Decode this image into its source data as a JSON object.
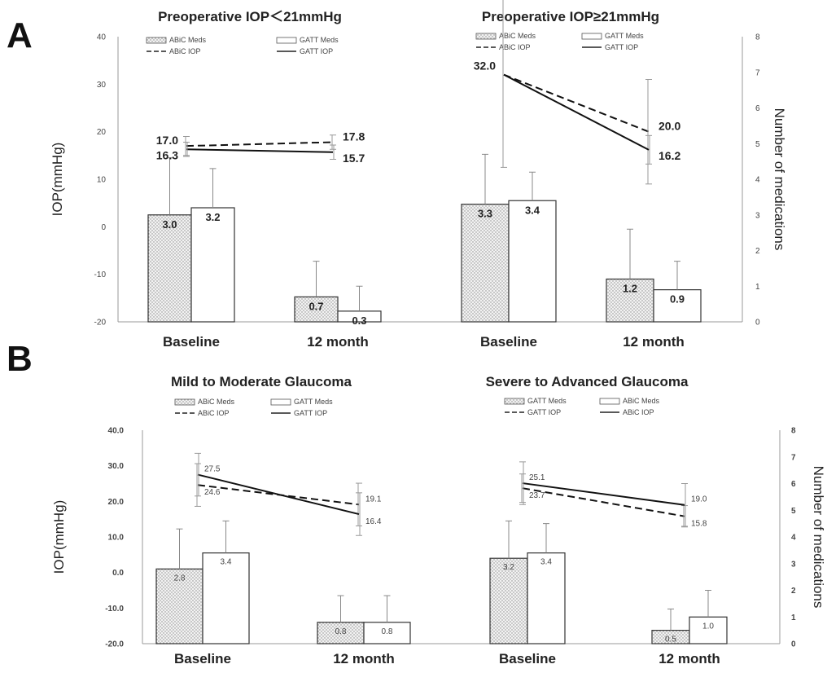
{
  "panels": {
    "A": {
      "letter": "A"
    },
    "B": {
      "letter": "B"
    }
  },
  "chart_data": [
    {
      "type": "bar",
      "panel": "A",
      "title": "Preoperative IOP＜21mmHg",
      "categories": [
        "Baseline",
        "12 month"
      ],
      "ylabel": "IOP(mmHg)",
      "y2label": "Number of medications",
      "ylim": [
        -20,
        40
      ],
      "y2lim": [
        0,
        8
      ],
      "yticks": [
        "-20",
        "-10",
        "0",
        "10",
        "20",
        "30",
        "40"
      ],
      "y2ticks": [
        "0",
        "1",
        "2",
        "3",
        "4",
        "5",
        "6",
        "7",
        "8"
      ],
      "legend": [
        "ABiC Meds",
        "GATT Meds",
        "ABiC IOP",
        "GATT IOP"
      ],
      "series": [
        {
          "name": "ABiC Meds",
          "kind": "bar",
          "values": [
            3.0,
            0.7
          ],
          "labels": [
            "3.0",
            "0.7"
          ],
          "err": [
            1.6,
            1.0
          ]
        },
        {
          "name": "GATT Meds",
          "kind": "bar",
          "values": [
            3.2,
            0.3
          ],
          "labels": [
            "3.2",
            "0.3"
          ],
          "err": [
            1.1,
            0.7
          ]
        },
        {
          "name": "ABiC IOP",
          "kind": "line",
          "style": "dashed",
          "values": [
            17.0,
            17.8
          ],
          "labels": [
            "17.0",
            "17.8"
          ],
          "err": [
            2.0,
            1.5
          ]
        },
        {
          "name": "GATT IOP",
          "kind": "line",
          "style": "solid",
          "values": [
            16.3,
            15.7
          ],
          "labels": [
            "16.3",
            "15.7"
          ],
          "err": [
            1.5,
            1.5
          ]
        }
      ]
    },
    {
      "type": "bar",
      "panel": "A",
      "title": "Preoperative IOP≥21mmHg",
      "categories": [
        "Baseline",
        "12 month"
      ],
      "ylabel": "IOP(mmHg)",
      "y2label": "Number of medications",
      "ylim": [
        -20,
        40
      ],
      "y2lim": [
        0,
        8
      ],
      "yticks": [
        "-20",
        "-10",
        "0",
        "10",
        "20",
        "30",
        "40"
      ],
      "y2ticks": [
        "0",
        "1",
        "2",
        "3",
        "4",
        "5",
        "6",
        "7",
        "8"
      ],
      "legend": [
        "ABiC Meds",
        "GATT Meds",
        "ABiC IOP",
        "GATT IOP"
      ],
      "series": [
        {
          "name": "ABiC Meds",
          "kind": "bar",
          "values": [
            3.3,
            1.2
          ],
          "labels": [
            "3.3",
            "1.2"
          ],
          "err": [
            1.4,
            1.4
          ]
        },
        {
          "name": "GATT Meds",
          "kind": "bar",
          "values": [
            3.4,
            0.9
          ],
          "labels": [
            "3.4",
            "0.9"
          ],
          "err": [
            0.8,
            0.8
          ]
        },
        {
          "name": "ABiC IOP",
          "kind": "line",
          "style": "dashed",
          "values": [
            32.0,
            20.0
          ],
          "labels": [
            "32.0",
            "20.0"
          ],
          "err": [
            19.5,
            11.0
          ]
        },
        {
          "name": "GATT IOP",
          "kind": "line",
          "style": "solid",
          "values": [
            32.0,
            16.2
          ],
          "labels": [
            "",
            "16.2"
          ],
          "err": [
            0,
            3.0
          ]
        }
      ]
    },
    {
      "type": "bar",
      "panel": "B",
      "title": "Mild to Moderate Glaucoma",
      "categories": [
        "Baseline",
        "12 month"
      ],
      "ylabel": "IOP(mmHg)",
      "y2label": "Number of medications",
      "ylim": [
        -20,
        40
      ],
      "y2lim": [
        0,
        8
      ],
      "yticks": [
        "-20.0",
        "-10.0",
        "0.0",
        "10.0",
        "20.0",
        "30.0",
        "40.0"
      ],
      "y2ticks": [
        "0",
        "1",
        "2",
        "3",
        "4",
        "5",
        "6",
        "7",
        "8"
      ],
      "legend": [
        "ABiC Meds",
        "GATT Meds",
        "ABiC IOP",
        "GATT IOP"
      ],
      "series": [
        {
          "name": "ABiC Meds",
          "kind": "bar",
          "values": [
            2.8,
            0.8
          ],
          "labels": [
            "2.8",
            "0.8"
          ],
          "err": [
            1.5,
            1.0
          ]
        },
        {
          "name": "GATT Meds",
          "kind": "bar",
          "values": [
            3.4,
            0.8
          ],
          "labels": [
            "3.4",
            "0.8"
          ],
          "err": [
            1.2,
            1.0
          ]
        },
        {
          "name": "ABiC IOP",
          "kind": "line",
          "style": "dashed",
          "values": [
            24.6,
            19.1
          ],
          "labels": [
            "24.6",
            "19.1"
          ],
          "err": [
            6.0,
            6.0
          ]
        },
        {
          "name": "GATT IOP",
          "kind": "line",
          "style": "solid",
          "values": [
            27.5,
            16.4
          ],
          "labels": [
            "27.5",
            "16.4"
          ],
          "err": [
            6.0,
            6.0
          ]
        }
      ]
    },
    {
      "type": "bar",
      "panel": "B",
      "title": "Severe to Advanced Glaucoma",
      "categories": [
        "Baseline",
        "12 month"
      ],
      "ylabel": "IOP(mmHg)",
      "y2label": "Number of medications",
      "ylim": [
        -20,
        40
      ],
      "y2lim": [
        0,
        8
      ],
      "yticks": [
        "-20.0",
        "-10.0",
        "0.0",
        "10.0",
        "20.0",
        "30.0",
        "40.0"
      ],
      "y2ticks": [
        "0",
        "1",
        "2",
        "3",
        "4",
        "5",
        "6",
        "7",
        "8"
      ],
      "legend": [
        "GATT Meds",
        "ABiC Meds",
        "GATT IOP",
        "ABiC IOP"
      ],
      "series": [
        {
          "name": "GATT Meds",
          "kind": "bar",
          "values": [
            3.2,
            0.5
          ],
          "labels": [
            "3.2",
            "0.5"
          ],
          "err": [
            1.4,
            0.8
          ]
        },
        {
          "name": "ABiC Meds",
          "kind": "bar",
          "values": [
            3.4,
            1.0
          ],
          "labels": [
            "3.4",
            "1.0"
          ],
          "err": [
            1.1,
            1.0
          ]
        },
        {
          "name": "GATT IOP",
          "kind": "line",
          "style": "dashed",
          "values": [
            23.7,
            15.8
          ],
          "labels": [
            "23.7",
            "15.8"
          ],
          "err": [
            4.0,
            3.0
          ]
        },
        {
          "name": "ABiC IOP",
          "kind": "line",
          "style": "solid",
          "values": [
            25.1,
            19.0
          ],
          "labels": [
            "25.1",
            "19.0"
          ],
          "err": [
            6.0,
            6.0
          ]
        }
      ]
    }
  ]
}
